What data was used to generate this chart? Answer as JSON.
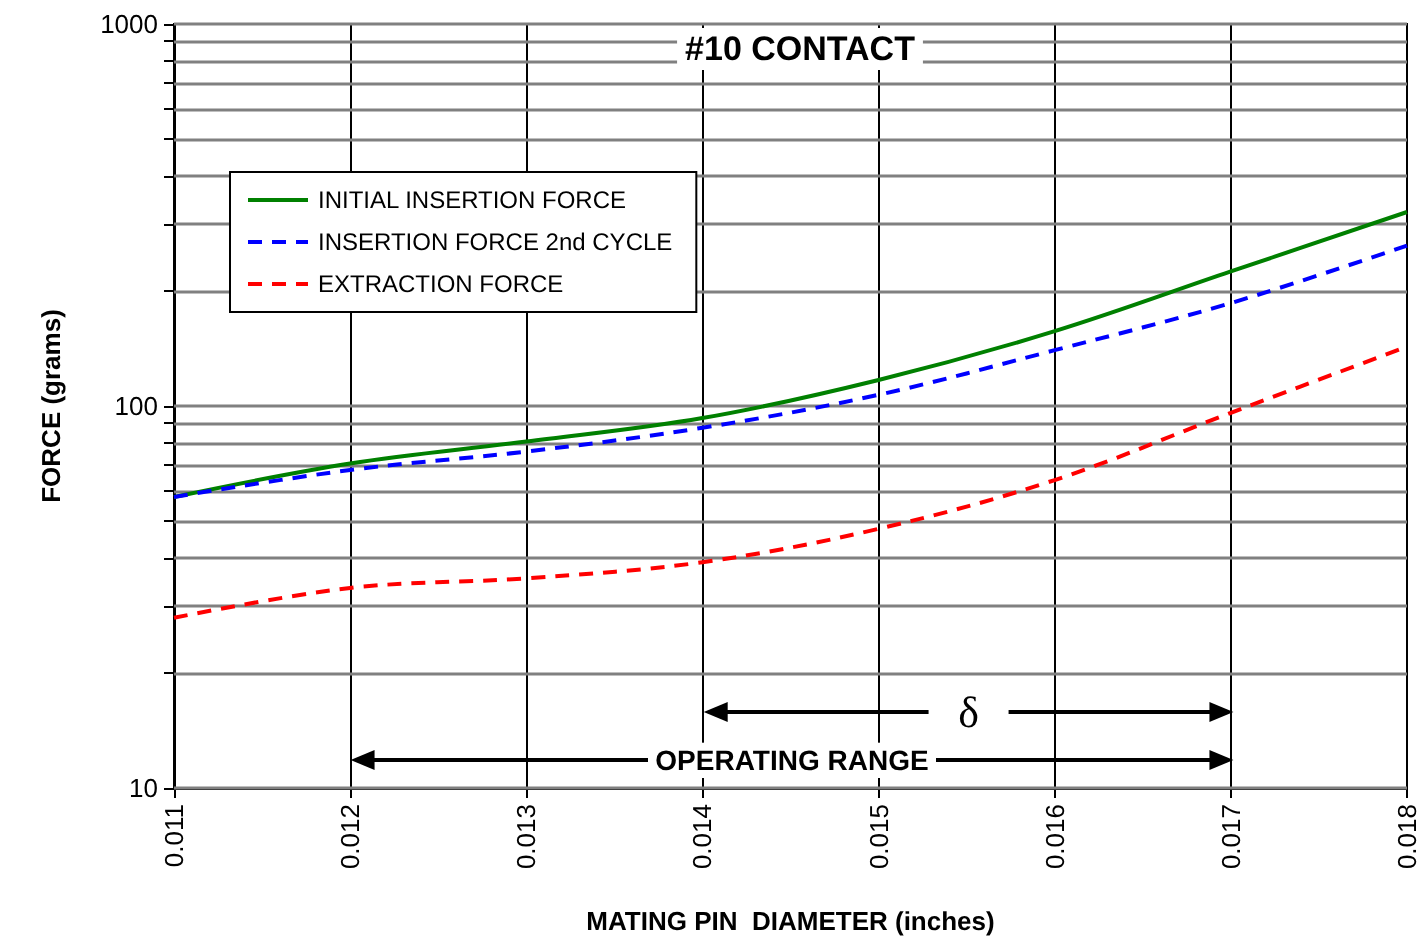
{
  "chart_data": {
    "type": "line",
    "title": "#10 CONTACT",
    "xlabel": "MATING PIN  DIAMETER (inches)",
    "ylabel": "FORCE (grams)",
    "x": [
      0.011,
      0.012,
      0.013,
      0.014,
      0.015,
      0.016,
      0.017,
      0.018
    ],
    "series": [
      {
        "name": "INITIAL INSERTION FORCE",
        "color": "#008000",
        "line_style": "solid",
        "values": [
          57.8,
          70.7,
          80.7,
          93,
          117,
          157,
          225,
          322
        ]
      },
      {
        "name": "INSERTION FORCE 2nd CYCLE",
        "color": "#0000ff",
        "line_style": "dashed",
        "values": [
          57.8,
          68,
          76,
          87.7,
          107,
          140,
          186,
          263
        ]
      },
      {
        "name": "EXTRACTION FORCE",
        "color": "#ff0000",
        "line_style": "dashed",
        "values": [
          27.9,
          33.4,
          35.4,
          39,
          47.7,
          64,
          96,
          143
        ]
      }
    ],
    "log": "y",
    "xlim": [
      0.011,
      0.018
    ],
    "xticks": [
      0.011,
      0.012,
      0.013,
      0.014,
      0.015,
      0.016,
      0.017,
      0.018
    ],
    "ylim": [
      10,
      1000
    ],
    "yticks": [
      10,
      {
        "value": 20,
        "label": null
      },
      {
        "value": 30,
        "label": null
      },
      {
        "value": 40,
        "label": null
      },
      {
        "value": 50,
        "label": null
      },
      {
        "value": 60,
        "label": null
      },
      {
        "value": 70,
        "label": null
      },
      {
        "value": 80,
        "label": null
      },
      {
        "value": 90,
        "label": null
      },
      100,
      {
        "value": 200,
        "label": null
      },
      {
        "value": 300,
        "label": null
      },
      {
        "value": 400,
        "label": null
      },
      {
        "value": 500,
        "label": null
      },
      {
        "value": 600,
        "label": null
      },
      {
        "value": 700,
        "label": null
      },
      {
        "value": 800,
        "label": null
      },
      {
        "value": 900,
        "label": null
      },
      1000
    ],
    "annotations": [
      "OPERATING RANGE",
      "δ"
    ],
    "grid": true,
    "legend": "top left",
    "marker": "none"
  }
}
